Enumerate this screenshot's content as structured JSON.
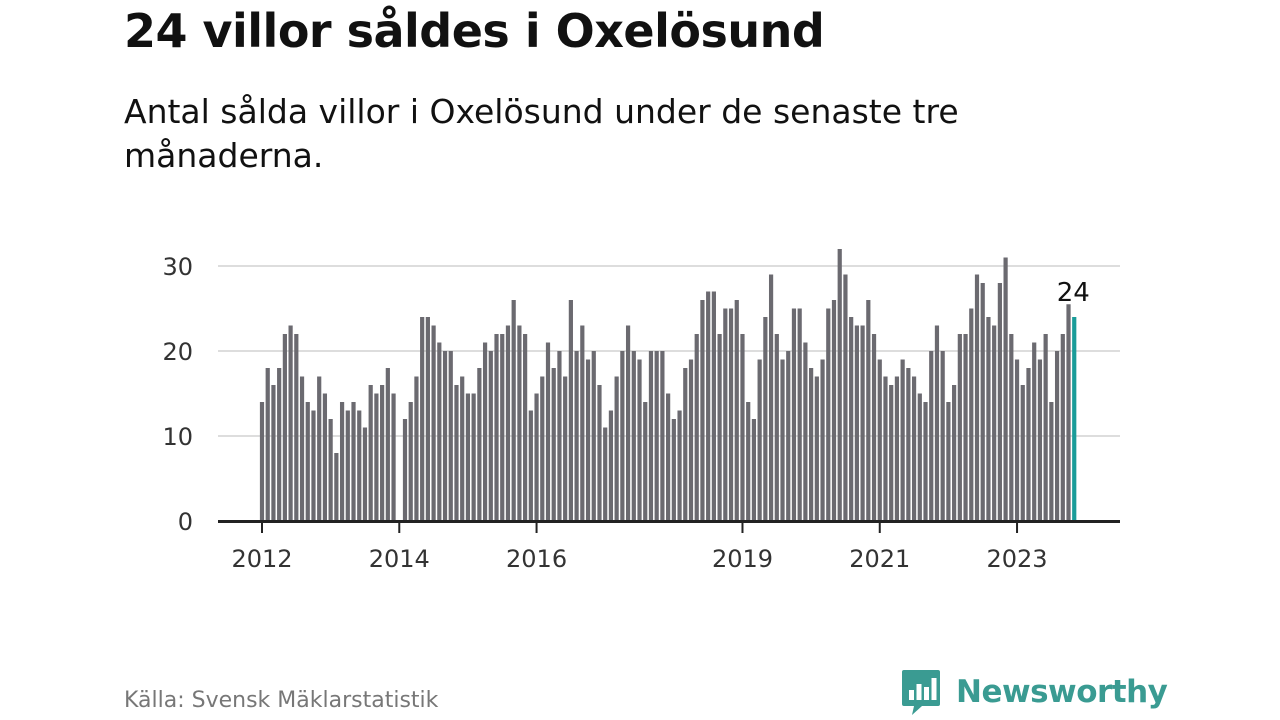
{
  "title": "24 villor såldes i Oxelösund",
  "subtitle": "Antal sålda villor i Oxelösund under de senaste tre månaderna.",
  "source": "Källa: Svensk Mäklarstatistik",
  "brand": "Newsworthy",
  "colors": {
    "bar": "#6b6a70",
    "highlight": "#1a9c99",
    "grid": "#dddddd",
    "axis": "#222222",
    "brand": "#3a9b92"
  },
  "chart_data": {
    "type": "bar",
    "title": "24 villor såldes i Oxelösund",
    "subtitle": "Antal sålda villor i Oxelösund under de senaste tre månaderna.",
    "xlabel": "",
    "ylabel": "",
    "ylim": [
      0,
      32
    ],
    "yticks": [
      0,
      10,
      20,
      30
    ],
    "x_tick_labels": [
      "2012",
      "2014",
      "2016",
      "2019",
      "2021",
      "2023"
    ],
    "x_tick_indices": [
      0,
      24,
      48,
      84,
      108,
      132
    ],
    "grid": true,
    "highlight_last": true,
    "last_label": "24",
    "values": [
      14,
      18,
      16,
      18,
      22,
      23,
      22,
      17,
      14,
      13,
      17,
      15,
      12,
      8,
      14,
      13,
      14,
      13,
      11,
      16,
      15,
      16,
      18,
      15,
      0,
      12,
      14,
      17,
      24,
      24,
      23,
      21,
      20,
      20,
      16,
      17,
      15,
      15,
      18,
      21,
      20,
      22,
      22,
      23,
      26,
      23,
      22,
      13,
      15,
      17,
      21,
      18,
      20,
      17,
      26,
      20,
      23,
      19,
      20,
      16,
      11,
      13,
      17,
      20,
      23,
      20,
      19,
      14,
      20,
      20,
      20,
      15,
      12,
      13,
      18,
      19,
      22,
      26,
      27,
      27,
      22,
      25,
      25,
      26,
      22,
      14,
      12,
      19,
      24,
      29,
      22,
      19,
      20,
      25,
      25,
      21,
      18,
      17,
      19,
      25,
      26,
      32,
      29,
      24,
      23,
      23,
      26,
      22,
      19,
      17,
      16,
      17,
      19,
      18,
      17,
      15,
      14,
      20,
      23,
      20,
      14,
      16,
      22,
      22,
      25,
      29,
      28,
      24,
      23,
      28,
      31,
      22,
      19,
      16,
      18,
      21,
      19,
      22,
      14,
      20,
      22,
      25.5,
      24
    ]
  }
}
